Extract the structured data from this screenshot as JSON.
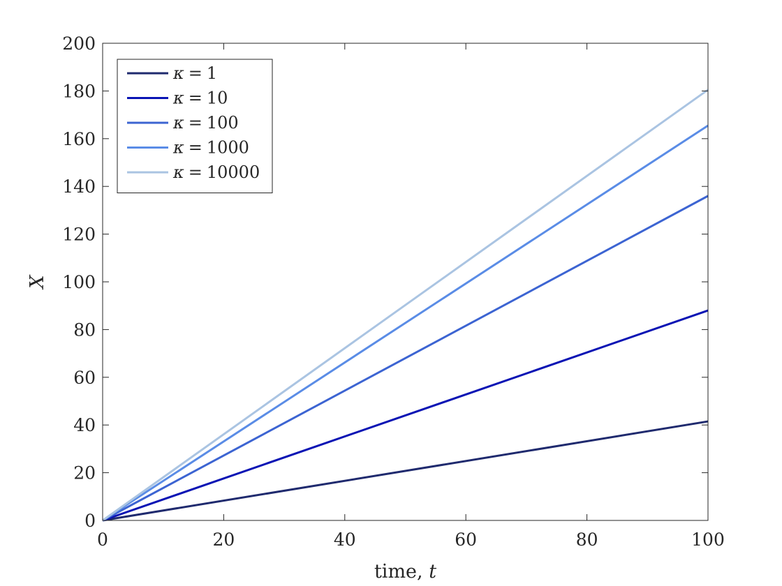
{
  "chart_data": {
    "type": "line",
    "title": "",
    "xlabel": "time, ",
    "xlabel_var": "t",
    "ylabel": "X",
    "xlim": [
      0,
      100
    ],
    "ylim": [
      0,
      200
    ],
    "xticks": [
      0,
      20,
      40,
      60,
      80,
      100
    ],
    "yticks": [
      0,
      20,
      40,
      60,
      80,
      100,
      120,
      140,
      160,
      180,
      200
    ],
    "grid": false,
    "legend_position": "top-left",
    "series": [
      {
        "name": "κ = 1",
        "kappa_symbol": "κ",
        "kappa_value": "1",
        "color": "#1f2a6e",
        "x": [
          0,
          100
        ],
        "y": [
          0,
          41.5
        ]
      },
      {
        "name": "κ = 10",
        "kappa_symbol": "κ",
        "kappa_value": "10",
        "color": "#0a14b4",
        "x": [
          0,
          100
        ],
        "y": [
          0,
          88
        ]
      },
      {
        "name": "κ = 100",
        "kappa_symbol": "κ",
        "kappa_value": "100",
        "color": "#3c64d2",
        "x": [
          0,
          100
        ],
        "y": [
          0,
          136
        ]
      },
      {
        "name": "κ = 1000",
        "kappa_symbol": "κ",
        "kappa_value": "1000",
        "color": "#5a8ce6",
        "x": [
          0,
          100
        ],
        "y": [
          0,
          165.5
        ]
      },
      {
        "name": "κ = 10000",
        "kappa_symbol": "κ",
        "kappa_value": "10000",
        "color": "#aac4e2",
        "x": [
          0,
          100
        ],
        "y": [
          0,
          180.5
        ]
      }
    ]
  }
}
